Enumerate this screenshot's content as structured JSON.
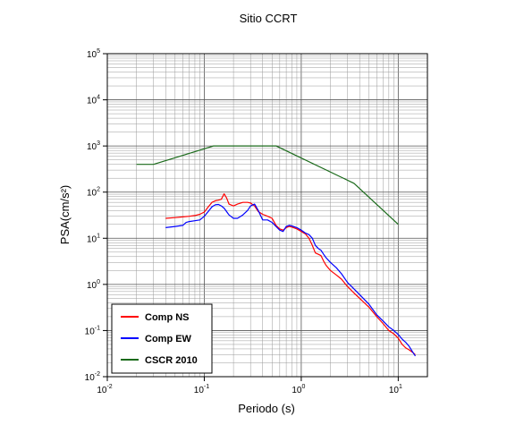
{
  "chart_data": {
    "type": "line",
    "title": "Sitio CCRT",
    "xlabel": "Periodo (s)",
    "ylabel": "PSA(cm/s²)",
    "xscale": "log",
    "yscale": "log",
    "xlim": [
      0.01,
      20
    ],
    "ylim": [
      0.01,
      100000
    ],
    "grid": true,
    "legend_position": "bottom-left",
    "x_ticks": [
      {
        "value": 0.01,
        "base": "10",
        "exp": "-2"
      },
      {
        "value": 0.1,
        "base": "10",
        "exp": "-1"
      },
      {
        "value": 1,
        "base": "10",
        "exp": "0"
      },
      {
        "value": 10,
        "base": "10",
        "exp": "1"
      }
    ],
    "y_ticks": [
      {
        "value": 0.01,
        "base": "10",
        "exp": "-2"
      },
      {
        "value": 0.1,
        "base": "10",
        "exp": "-1"
      },
      {
        "value": 1,
        "base": "10",
        "exp": "0"
      },
      {
        "value": 10,
        "base": "10",
        "exp": "1"
      },
      {
        "value": 100,
        "base": "10",
        "exp": "2"
      },
      {
        "value": 1000,
        "base": "10",
        "exp": "3"
      },
      {
        "value": 10000,
        "base": "10",
        "exp": "4"
      },
      {
        "value": 100000,
        "base": "10",
        "exp": "5"
      }
    ],
    "series": [
      {
        "name": "Comp NS",
        "color": "#ff0000",
        "points": [
          [
            0.04,
            27
          ],
          [
            0.05,
            28
          ],
          [
            0.06,
            29
          ],
          [
            0.07,
            30
          ],
          [
            0.08,
            31
          ],
          [
            0.09,
            33
          ],
          [
            0.1,
            37
          ],
          [
            0.11,
            48
          ],
          [
            0.12,
            60
          ],
          [
            0.13,
            65
          ],
          [
            0.14,
            67
          ],
          [
            0.15,
            70
          ],
          [
            0.16,
            92
          ],
          [
            0.17,
            75
          ],
          [
            0.18,
            55
          ],
          [
            0.2,
            50
          ],
          [
            0.22,
            55
          ],
          [
            0.25,
            60
          ],
          [
            0.28,
            60
          ],
          [
            0.3,
            58
          ],
          [
            0.33,
            50
          ],
          [
            0.36,
            38
          ],
          [
            0.4,
            33
          ],
          [
            0.45,
            30
          ],
          [
            0.5,
            27
          ],
          [
            0.55,
            19
          ],
          [
            0.6,
            16
          ],
          [
            0.65,
            15
          ],
          [
            0.7,
            17
          ],
          [
            0.75,
            18
          ],
          [
            0.8,
            17.5
          ],
          [
            0.9,
            16
          ],
          [
            1.0,
            14
          ],
          [
            1.1,
            12.5
          ],
          [
            1.2,
            10
          ],
          [
            1.3,
            7
          ],
          [
            1.4,
            4.8
          ],
          [
            1.5,
            4.5
          ],
          [
            1.6,
            4.2
          ],
          [
            1.7,
            3.2
          ],
          [
            1.8,
            2.6
          ],
          [
            2.0,
            2.0
          ],
          [
            2.3,
            1.6
          ],
          [
            2.6,
            1.3
          ],
          [
            3.0,
            0.9
          ],
          [
            3.5,
            0.65
          ],
          [
            4.0,
            0.5
          ],
          [
            5.0,
            0.32
          ],
          [
            6.0,
            0.2
          ],
          [
            7.0,
            0.14
          ],
          [
            8.0,
            0.1
          ],
          [
            9.0,
            0.085
          ],
          [
            10.0,
            0.068
          ],
          [
            11.0,
            0.05
          ],
          [
            12.0,
            0.042
          ],
          [
            13.0,
            0.038
          ],
          [
            14.0,
            0.034
          ],
          [
            15.0,
            0.03
          ]
        ]
      },
      {
        "name": "Comp EW",
        "color": "#0000ff",
        "points": [
          [
            0.04,
            17
          ],
          [
            0.05,
            18
          ],
          [
            0.06,
            19
          ],
          [
            0.065,
            22
          ],
          [
            0.07,
            23
          ],
          [
            0.08,
            24
          ],
          [
            0.09,
            25
          ],
          [
            0.1,
            30
          ],
          [
            0.11,
            38
          ],
          [
            0.12,
            48
          ],
          [
            0.13,
            53
          ],
          [
            0.14,
            54
          ],
          [
            0.15,
            50
          ],
          [
            0.16,
            45
          ],
          [
            0.18,
            32
          ],
          [
            0.2,
            27
          ],
          [
            0.22,
            27
          ],
          [
            0.25,
            32
          ],
          [
            0.28,
            40
          ],
          [
            0.3,
            50
          ],
          [
            0.33,
            55
          ],
          [
            0.36,
            40
          ],
          [
            0.4,
            25
          ],
          [
            0.45,
            25
          ],
          [
            0.5,
            22
          ],
          [
            0.55,
            18
          ],
          [
            0.6,
            15
          ],
          [
            0.65,
            14
          ],
          [
            0.7,
            18
          ],
          [
            0.75,
            19
          ],
          [
            0.8,
            18.5
          ],
          [
            0.9,
            17
          ],
          [
            1.0,
            15
          ],
          [
            1.1,
            13
          ],
          [
            1.2,
            12
          ],
          [
            1.3,
            10
          ],
          [
            1.4,
            7
          ],
          [
            1.5,
            6
          ],
          [
            1.6,
            5.5
          ],
          [
            1.7,
            4.5
          ],
          [
            1.8,
            3.8
          ],
          [
            2.0,
            3.0
          ],
          [
            2.3,
            2.3
          ],
          [
            2.6,
            1.7
          ],
          [
            3.0,
            1.1
          ],
          [
            3.5,
            0.8
          ],
          [
            4.0,
            0.6
          ],
          [
            5.0,
            0.37
          ],
          [
            6.0,
            0.22
          ],
          [
            7.0,
            0.16
          ],
          [
            8.0,
            0.12
          ],
          [
            9.0,
            0.1
          ],
          [
            10.0,
            0.082
          ],
          [
            11.0,
            0.065
          ],
          [
            12.0,
            0.055
          ],
          [
            13.0,
            0.045
          ],
          [
            14.0,
            0.035
          ],
          [
            15.0,
            0.028
          ]
        ]
      },
      {
        "name": "CSCR 2010",
        "color": "#1a6a1a",
        "points": [
          [
            0.02,
            400
          ],
          [
            0.03,
            400
          ],
          [
            0.125,
            1000
          ],
          [
            0.55,
            1000
          ],
          [
            3.5,
            155
          ],
          [
            10,
            20
          ]
        ]
      }
    ]
  }
}
